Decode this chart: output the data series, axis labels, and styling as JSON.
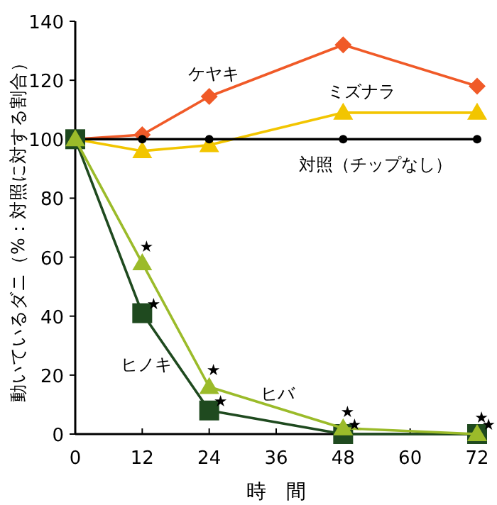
{
  "chart_data": {
    "type": "line",
    "xlabel": "時　間",
    "ylabel": "動いているダニ（%：対照に対する割合）",
    "x": [
      0,
      12,
      24,
      48,
      72
    ],
    "xlim": [
      0,
      72
    ],
    "xticks": [
      0,
      12,
      24,
      36,
      48,
      60,
      72
    ],
    "ylim": [
      0,
      140
    ],
    "yticks": [
      0,
      20,
      40,
      60,
      80,
      100,
      120,
      140
    ],
    "line_style": "solid",
    "series": [
      {
        "name": "ケヤキ",
        "color": "#f05a28",
        "marker": "diamond",
        "values": [
          100,
          101.5,
          114.5,
          132,
          118
        ]
      },
      {
        "name": "ミズナラ",
        "color": "#f2c500",
        "marker": "triangle",
        "values": [
          100,
          96,
          98,
          109,
          109
        ]
      },
      {
        "name": "対照（チップなし）",
        "color": "#000000",
        "marker": "circle",
        "values": [
          100,
          100,
          100,
          100,
          100
        ]
      },
      {
        "name": "ヒノキ",
        "color": "#1f4a1f",
        "marker": "square",
        "values": [
          100,
          41,
          8,
          0,
          0
        ]
      },
      {
        "name": "ヒバ",
        "color": "#9bbb2a",
        "marker": "triangle",
        "values": [
          100,
          58,
          16,
          2,
          0
        ]
      }
    ],
    "annotations": [
      {
        "text": "★",
        "x": 12,
        "y": 58
      },
      {
        "text": "★",
        "x": 12,
        "y": 41
      },
      {
        "text": "★",
        "x": 24,
        "y": 16
      },
      {
        "text": "★",
        "x": 24,
        "y": 8
      },
      {
        "text": "★",
        "x": 48,
        "y": 2
      },
      {
        "text": "★",
        "x": 48,
        "y": 0
      },
      {
        "text": "★",
        "x": 72,
        "y": 0
      },
      {
        "text": "★",
        "x": 72,
        "y": 0
      }
    ]
  }
}
